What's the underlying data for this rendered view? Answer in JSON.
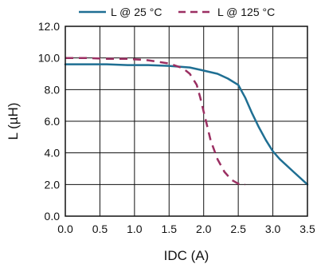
{
  "chart_data": {
    "type": "line",
    "title": "",
    "xlabel": "IDC (A)",
    "ylabel": "L (µH)",
    "xlim": [
      0,
      3.5
    ],
    "ylim": [
      0,
      12
    ],
    "xticks": [
      "0.0",
      "0.5",
      "1.0",
      "1.5",
      "2.0",
      "2.5",
      "3.0",
      "3.5"
    ],
    "yticks": [
      "0.0",
      "2.0",
      "4.0",
      "6.0",
      "8.0",
      "10.0",
      "12.0"
    ],
    "grid": true,
    "legend_position": "top",
    "series": [
      {
        "name": "L @ 25 °C",
        "color": "#1f6f93",
        "style": "solid",
        "x": [
          0.0,
          0.3,
          0.6,
          0.9,
          1.2,
          1.5,
          1.8,
          2.0,
          2.2,
          2.35,
          2.5,
          2.6,
          2.7,
          2.8,
          2.9,
          3.0,
          3.1,
          3.3,
          3.5
        ],
        "y": [
          9.6,
          9.6,
          9.6,
          9.55,
          9.55,
          9.5,
          9.4,
          9.2,
          9.0,
          8.7,
          8.3,
          7.5,
          6.5,
          5.6,
          4.8,
          4.1,
          3.6,
          2.8,
          2.0
        ]
      },
      {
        "name": "L @ 125 °C",
        "color": "#9b2f62",
        "style": "dashed",
        "x": [
          0.0,
          0.3,
          0.6,
          0.9,
          1.2,
          1.5,
          1.7,
          1.8,
          1.9,
          1.95,
          2.0,
          2.05,
          2.1,
          2.2,
          2.3,
          2.4,
          2.5,
          2.6
        ],
        "y": [
          10.0,
          10.0,
          9.95,
          9.95,
          9.85,
          9.65,
          9.35,
          9.0,
          8.3,
          7.5,
          6.6,
          5.7,
          4.8,
          3.6,
          2.8,
          2.3,
          2.05,
          2.0
        ]
      }
    ]
  }
}
